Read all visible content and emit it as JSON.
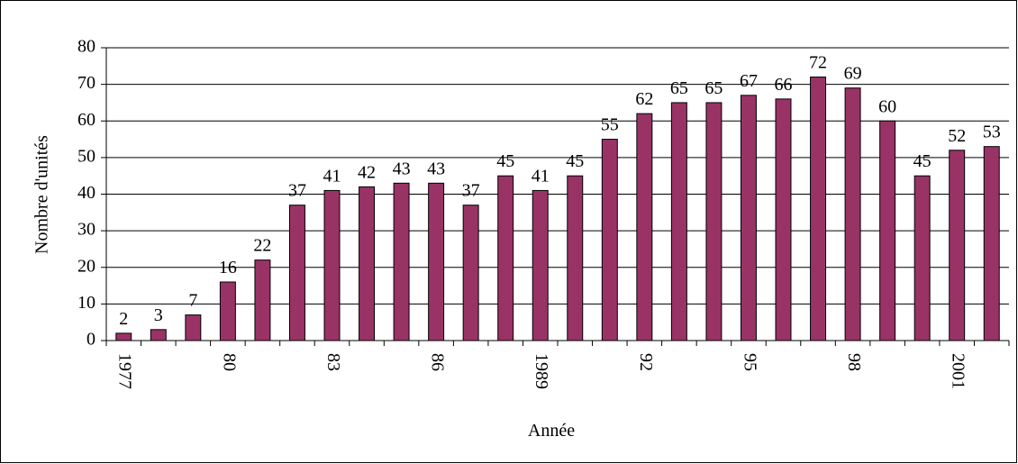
{
  "chart_data": {
    "type": "bar",
    "xlabel": "Année",
    "ylabel": "Nombre d'unités",
    "categories": [
      "1977",
      null,
      null,
      "80",
      null,
      null,
      "83",
      null,
      null,
      "86",
      null,
      null,
      "1989",
      null,
      null,
      "92",
      null,
      null,
      "95",
      null,
      null,
      "98",
      null,
      null,
      "2001",
      null
    ],
    "values": [
      2,
      3,
      7,
      16,
      22,
      37,
      41,
      42,
      43,
      43,
      37,
      45,
      41,
      45,
      55,
      62,
      65,
      65,
      67,
      66,
      72,
      69,
      60,
      45,
      52,
      53
    ],
    "color": "#993366",
    "ylim": [
      0,
      80
    ],
    "yticks": [
      0,
      10,
      20,
      30,
      40,
      50,
      60,
      70,
      80
    ],
    "grid": true
  }
}
